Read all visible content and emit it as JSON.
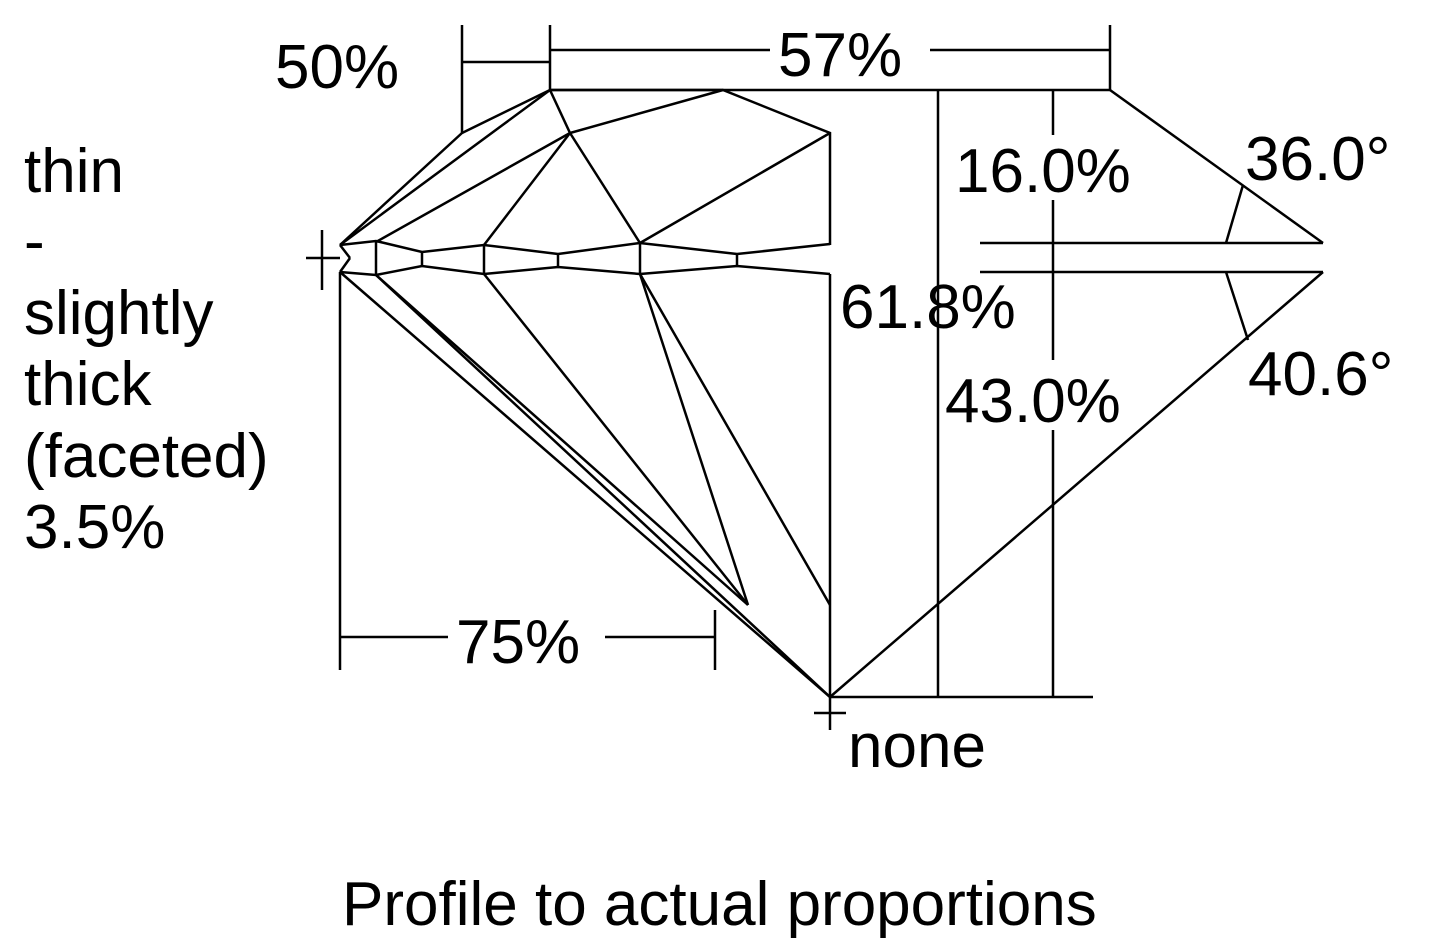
{
  "labels": {
    "table_small": "50%",
    "table": "57%",
    "girdle": [
      "thin",
      "-",
      "slightly",
      "thick",
      "(faceted)",
      "3.5%"
    ],
    "crown_height": "16.0%",
    "crown_angle": "36.0°",
    "total_depth": "61.8%",
    "pavilion_angle": "40.6°",
    "pavilion_depth": "43.0%",
    "lower_half": "75%",
    "culet": "none"
  },
  "caption": "Profile to actual proportions"
}
